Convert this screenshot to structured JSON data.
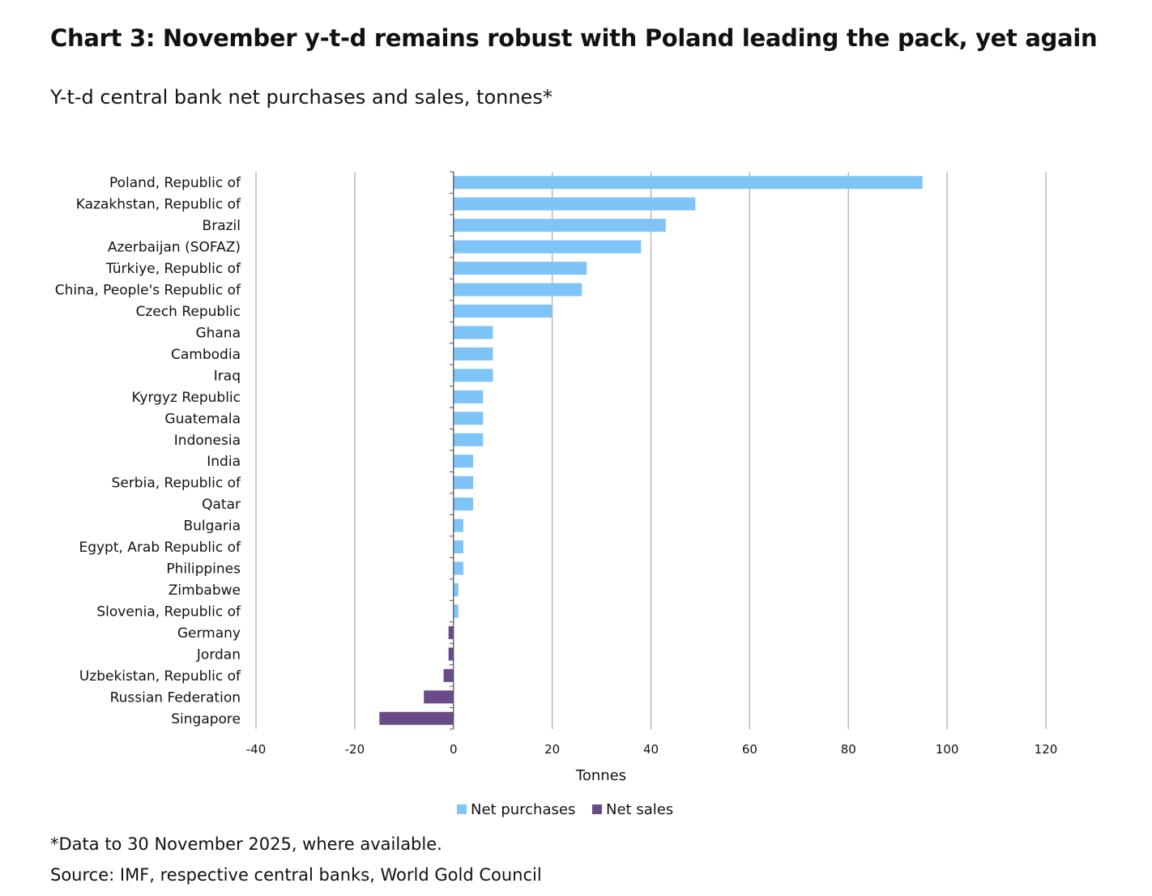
{
  "title": "Chart 3: November y-t-d remains robust with Poland leading the pack, yet again",
  "subtitle": "Y-t-d central bank net purchases and sales, tonnes*",
  "note": "*Data to 30 November 2025, where available.",
  "source": "Source: IMF, respective central banks, World Gold Council",
  "colors": {
    "purchases": "#7fc4f7",
    "sales": "#6a4b8a",
    "grid": "#b0b0b0",
    "axis": "#555555"
  },
  "chart_data": {
    "type": "bar",
    "orientation": "horizontal",
    "xlabel": "Tonnes",
    "xlim": [
      -40,
      120
    ],
    "xticks": [
      -40,
      -20,
      0,
      20,
      40,
      60,
      80,
      100,
      120
    ],
    "grid": true,
    "legend_position": "bottom",
    "series": [
      {
        "name": "Net purchases",
        "color": "#7fc4f7"
      },
      {
        "name": "Net sales",
        "color": "#6a4b8a"
      }
    ],
    "categories": [
      "Poland, Republic of",
      "Kazakhstan, Republic of",
      "Brazil",
      "Azerbaijan (SOFAZ)",
      "Türkiye, Republic of",
      "China, People's Republic of",
      "Czech Republic",
      "Ghana",
      "Cambodia",
      "Iraq",
      "Kyrgyz Republic",
      "Guatemala",
      "Indonesia",
      "India",
      "Serbia, Republic of",
      "Qatar",
      "Bulgaria",
      "Egypt, Arab Republic of",
      "Philippines",
      "Zimbabwe",
      "Slovenia, Republic of",
      "Germany",
      "Jordan",
      "Uzbekistan, Republic of",
      "Russian Federation",
      "Singapore"
    ],
    "values": [
      95,
      49,
      43,
      38,
      27,
      26,
      20,
      8,
      8,
      8,
      6,
      6,
      6,
      4,
      4,
      4,
      2,
      2,
      2,
      1,
      1,
      -1,
      -1,
      -2,
      -6,
      -15
    ]
  }
}
